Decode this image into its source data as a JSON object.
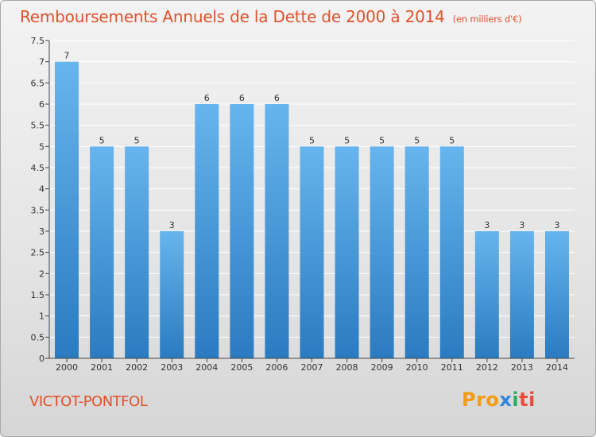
{
  "title": "Remboursements Annuels de la Dette de 2000 à 2014",
  "title_unit": "(en milliers d'€)",
  "city": "VICTOT-PONTFOL",
  "logo": {
    "part1": "Pro",
    "part2": "x",
    "part3": "i",
    "part4": "ti"
  },
  "colors": {
    "title": "#e0512c",
    "bar_top": "#66b5ee",
    "bar_bottom": "#2a7bc0",
    "grid": "#ffffff",
    "axis": "#444444"
  },
  "chart_data": {
    "type": "bar",
    "categories": [
      "2000",
      "2001",
      "2002",
      "2003",
      "2004",
      "2005",
      "2006",
      "2007",
      "2008",
      "2009",
      "2010",
      "2011",
      "2012",
      "2013",
      "2014"
    ],
    "values": [
      7,
      5,
      5,
      3,
      6,
      6,
      6,
      5,
      5,
      5,
      5,
      5,
      3,
      3,
      3
    ],
    "data_labels": [
      "7",
      "5",
      "5",
      "3",
      "6",
      "6",
      "6",
      "5",
      "5",
      "5",
      "5",
      "5",
      "3",
      "3",
      "3"
    ],
    "y_ticks": [
      "0",
      "0.5",
      "1",
      "1.5",
      "2",
      "2.5",
      "3",
      "3.5",
      "4",
      "4.5",
      "5",
      "5.5",
      "6",
      "6.5",
      "7",
      "7.5"
    ],
    "ylim": [
      0,
      7.5
    ],
    "grid": true,
    "title": "Remboursements Annuels de la Dette de 2000 à 2014",
    "xlabel": "",
    "ylabel": ""
  }
}
